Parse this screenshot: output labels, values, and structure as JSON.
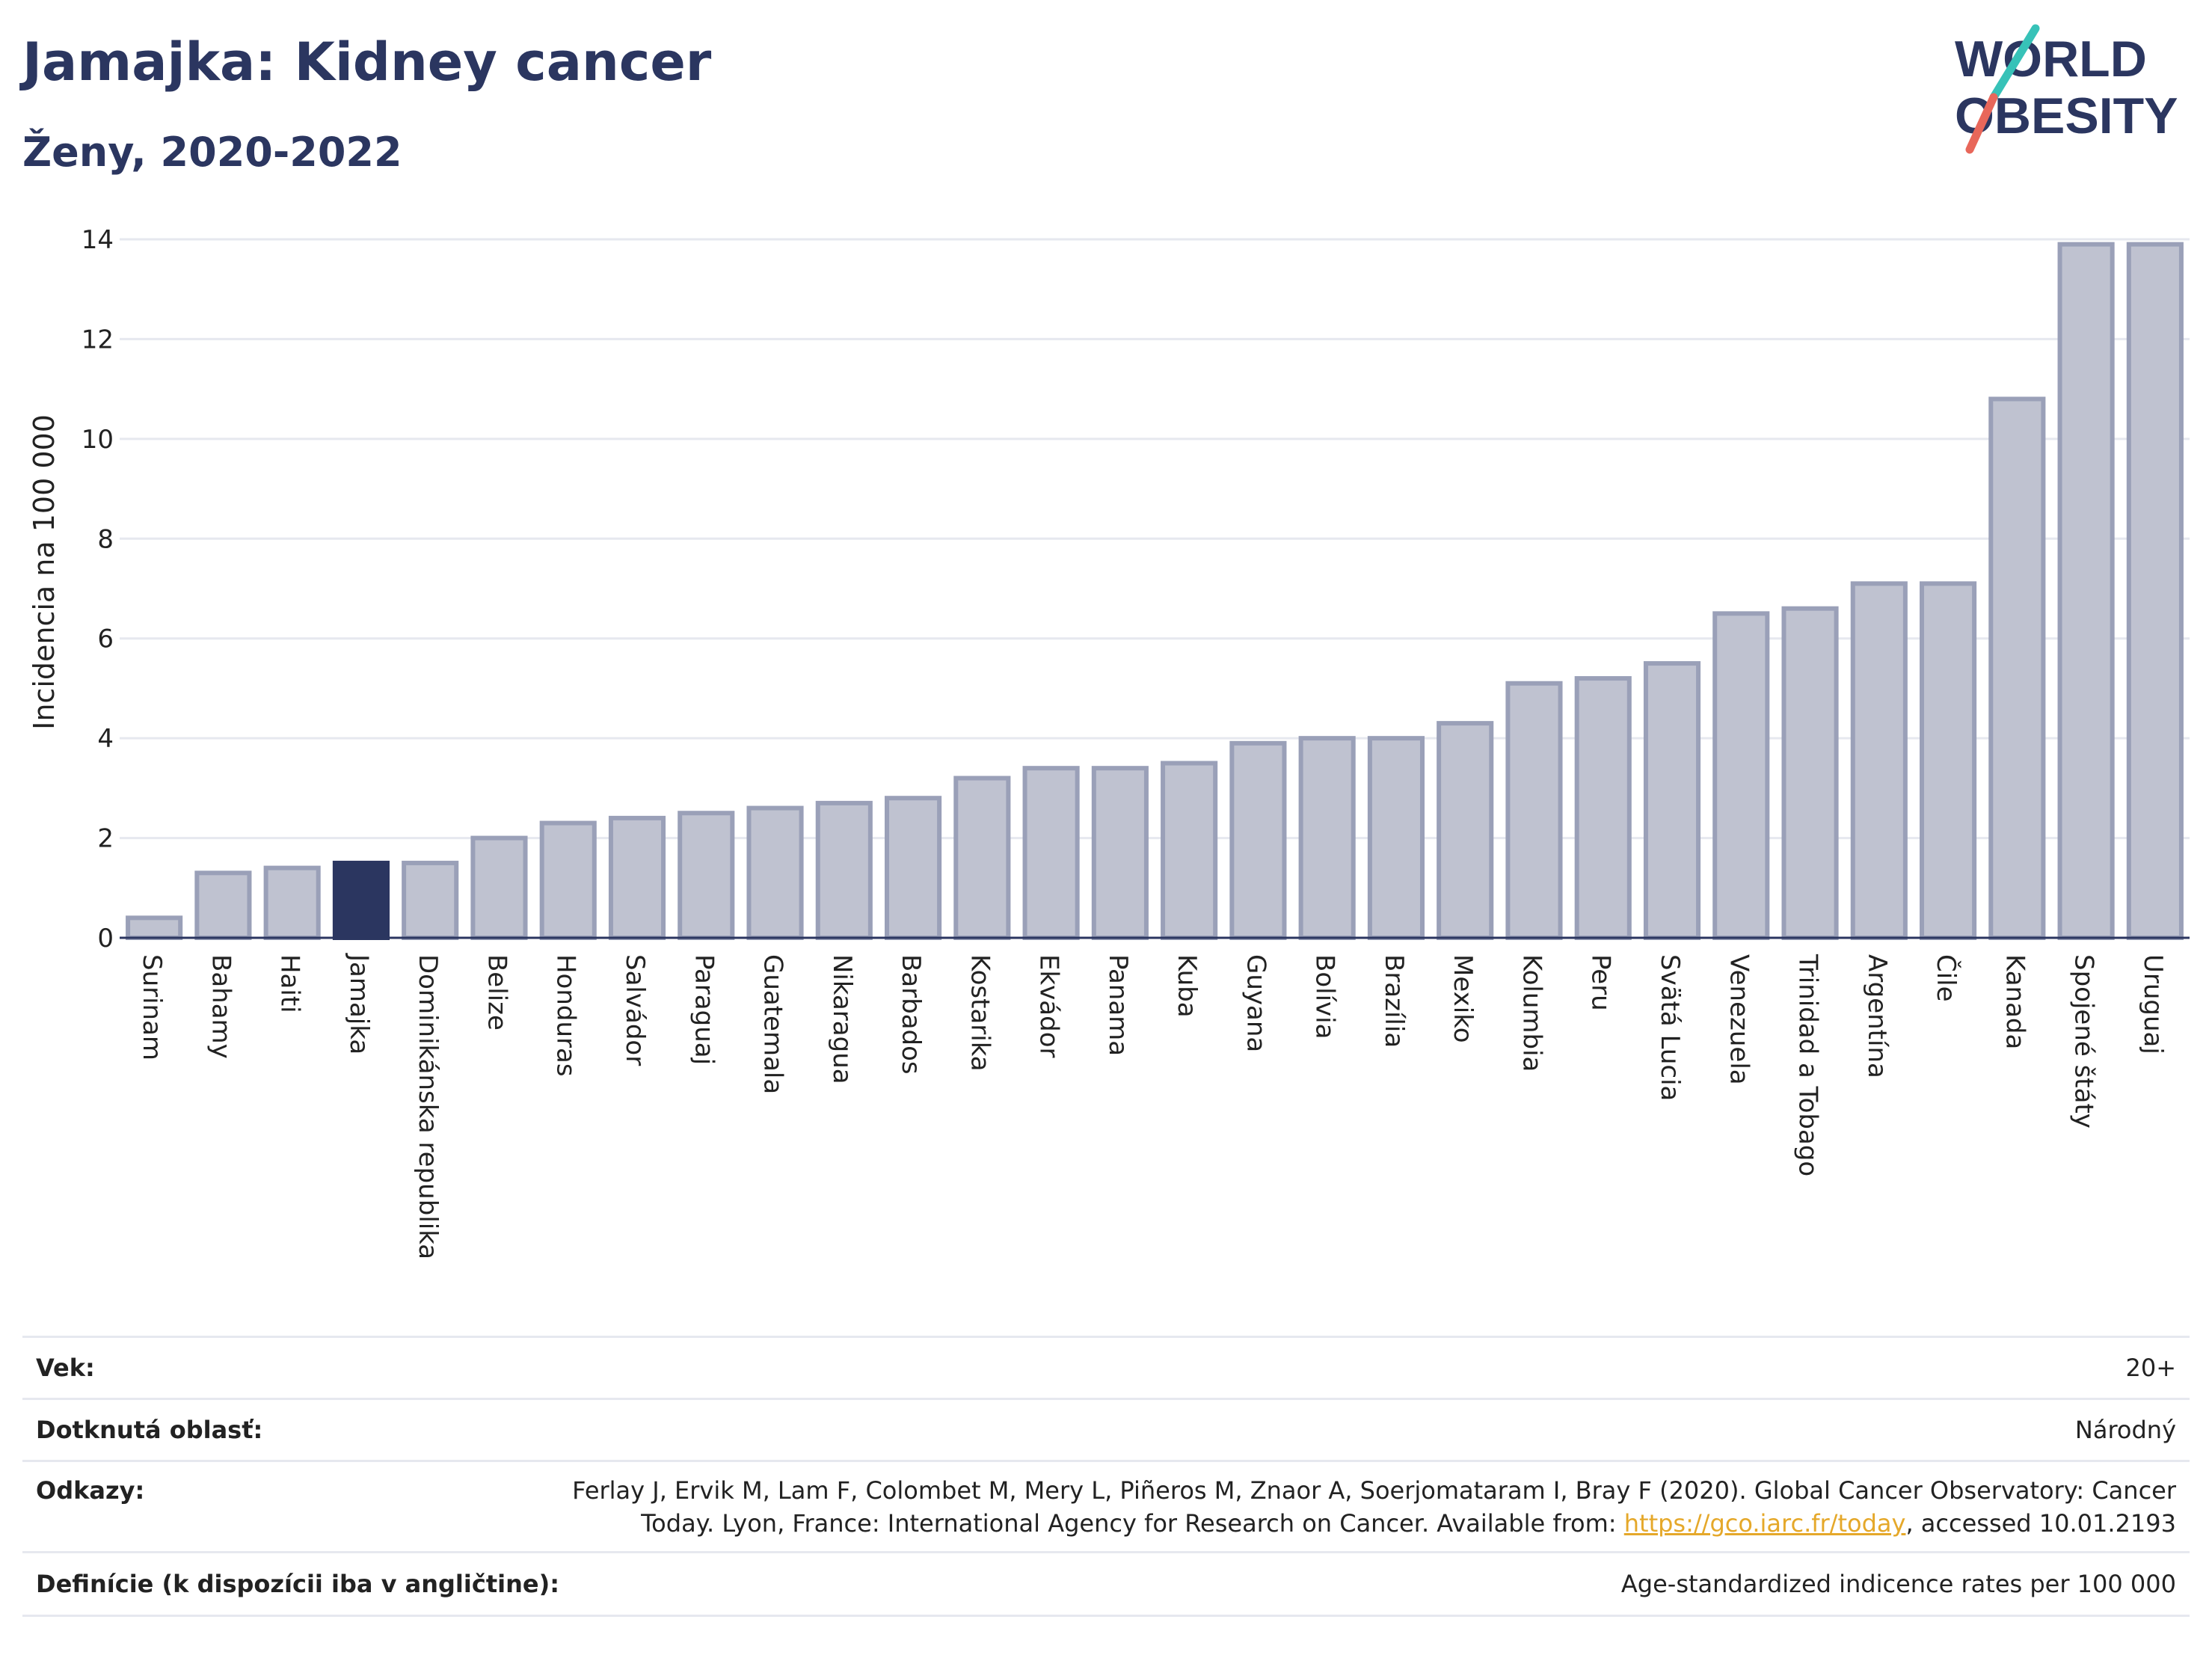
{
  "header": {
    "title": "Jamajka: Kidney cancer",
    "subtitle": "Ženy, 2020-2022"
  },
  "logo": {
    "line1": "WORLD",
    "line2": "OBESITY"
  },
  "colors": {
    "bar": "#bfc2d0",
    "bar_stroke": "#9aa0b8",
    "highlight": "#2b3660",
    "axis": "#2b3660",
    "grid": "#e6e8ef",
    "link": "#e5a82a",
    "logo_slash_top": "#37c2b8",
    "logo_slash_bottom": "#e8675a"
  },
  "chart_data": {
    "type": "bar",
    "ylabel": "Incidencia na 100 000",
    "ylim": [
      0,
      14
    ],
    "yticks": [
      0,
      2,
      4,
      6,
      8,
      10,
      12,
      14
    ],
    "highlight": "Jamajka",
    "categories": [
      "Surinam",
      "Bahamy",
      "Haiti",
      "Jamajka",
      "Dominikánska republika",
      "Belize",
      "Honduras",
      "Salvádor",
      "Paraguaj",
      "Guatemala",
      "Nikaragua",
      "Barbados",
      "Kostarika",
      "Ekvádor",
      "Panama",
      "Kuba",
      "Guyana",
      "Bolívia",
      "Brazília",
      "Mexiko",
      "Kolumbia",
      "Peru",
      "Svätá Lucia",
      "Venezuela",
      "Trinidad a Tobago",
      "Argentína",
      "Čile",
      "Kanada",
      "Spojené štáty",
      "Uruguaj"
    ],
    "values": [
      0.4,
      1.3,
      1.4,
      1.5,
      1.5,
      2.0,
      2.3,
      2.4,
      2.5,
      2.6,
      2.7,
      2.8,
      3.2,
      3.4,
      3.4,
      3.5,
      3.9,
      4.0,
      4.0,
      4.3,
      5.1,
      5.2,
      5.5,
      6.5,
      6.6,
      7.1,
      7.1,
      10.8,
      13.9,
      13.9
    ]
  },
  "meta": {
    "rows": [
      {
        "key": "Vek:",
        "value": "20+"
      },
      {
        "key": "Dotknutá oblasť:",
        "value": "Národný"
      },
      {
        "key": "Odkazy:",
        "value_line1": "Ferlay J, Ervik M, Lam F, Colombet M, Mery L, Piñeros M, Znaor A, Soerjomataram I, Bray F (2020). Global Cancer Observatory: Cancer",
        "value_line2_pre": "Today. Lyon, France: International Agency for Research on Cancer. Available from: ",
        "link": "https://gco.iarc.fr/today",
        "value_line2_post": ", accessed 10.01.2193"
      },
      {
        "key": "Definície (k dispozícii iba v angličtine):",
        "value": "Age-standardized indicence rates per 100 000"
      }
    ]
  }
}
